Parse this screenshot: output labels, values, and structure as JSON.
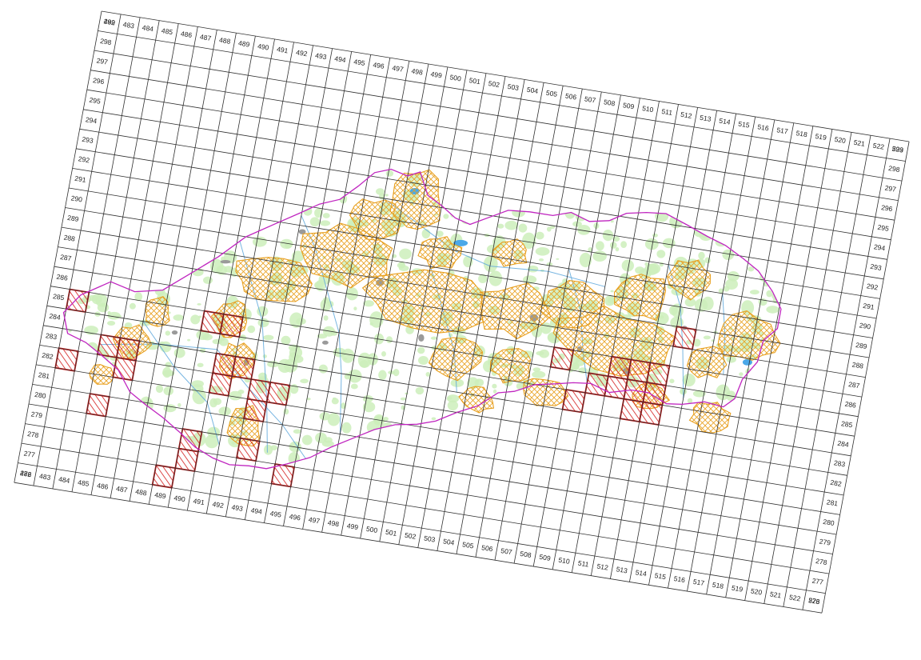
{
  "map": {
    "colors": {
      "grid_line": "#303030",
      "border": "#c026c0",
      "land_fill": "#ffffff",
      "forest": "#cdeebb",
      "protected_area": "#e8a020",
      "occupied_square": "#d31a1a",
      "rivers": "#5fa8dc",
      "water": "#4aa8e8",
      "towns": "#9a9a9a"
    },
    "grid": {
      "column_labels": [
        "482",
        "483",
        "484",
        "485",
        "486",
        "487",
        "488",
        "489",
        "490",
        "491",
        "492",
        "493",
        "494",
        "495",
        "496",
        "497",
        "498",
        "499",
        "500",
        "501",
        "502",
        "503",
        "504",
        "505",
        "506",
        "507",
        "508",
        "509",
        "510",
        "511",
        "512",
        "513",
        "514",
        "515",
        "516",
        "517",
        "518",
        "519",
        "520",
        "521",
        "522",
        "523"
      ],
      "row_labels": [
        "299",
        "298",
        "297",
        "296",
        "295",
        "294",
        "293",
        "292",
        "291",
        "290",
        "289",
        "288",
        "287",
        "286",
        "285",
        "284",
        "283",
        "282",
        "281",
        "280",
        "279",
        "278",
        "277",
        "276"
      ]
    },
    "occupied_squares": [
      {
        "col": "483",
        "row": "285"
      },
      {
        "col": "483",
        "row": "282"
      },
      {
        "col": "485",
        "row": "283"
      },
      {
        "col": "486",
        "row": "283"
      },
      {
        "col": "486",
        "row": "282"
      },
      {
        "col": "485",
        "row": "280"
      },
      {
        "col": "490",
        "row": "285"
      },
      {
        "col": "491",
        "row": "285"
      },
      {
        "col": "491",
        "row": "283"
      },
      {
        "col": "492",
        "row": "283"
      },
      {
        "col": "491",
        "row": "282"
      },
      {
        "col": "493",
        "row": "282"
      },
      {
        "col": "494",
        "row": "282"
      },
      {
        "col": "493",
        "row": "281"
      },
      {
        "col": "493",
        "row": "279"
      },
      {
        "col": "490",
        "row": "279"
      },
      {
        "col": "490",
        "row": "278"
      },
      {
        "col": "489",
        "row": "277"
      },
      {
        "col": "495",
        "row": "278"
      },
      {
        "col": "508",
        "row": "286"
      },
      {
        "col": "509",
        "row": "284"
      },
      {
        "col": "510",
        "row": "285"
      },
      {
        "col": "511",
        "row": "286"
      },
      {
        "col": "512",
        "row": "286"
      },
      {
        "col": "513",
        "row": "286"
      },
      {
        "col": "511",
        "row": "285"
      },
      {
        "col": "512",
        "row": "285"
      },
      {
        "col": "513",
        "row": "285"
      },
      {
        "col": "512",
        "row": "284"
      },
      {
        "col": "513",
        "row": "284"
      },
      {
        "col": "514",
        "row": "288"
      }
    ]
  }
}
